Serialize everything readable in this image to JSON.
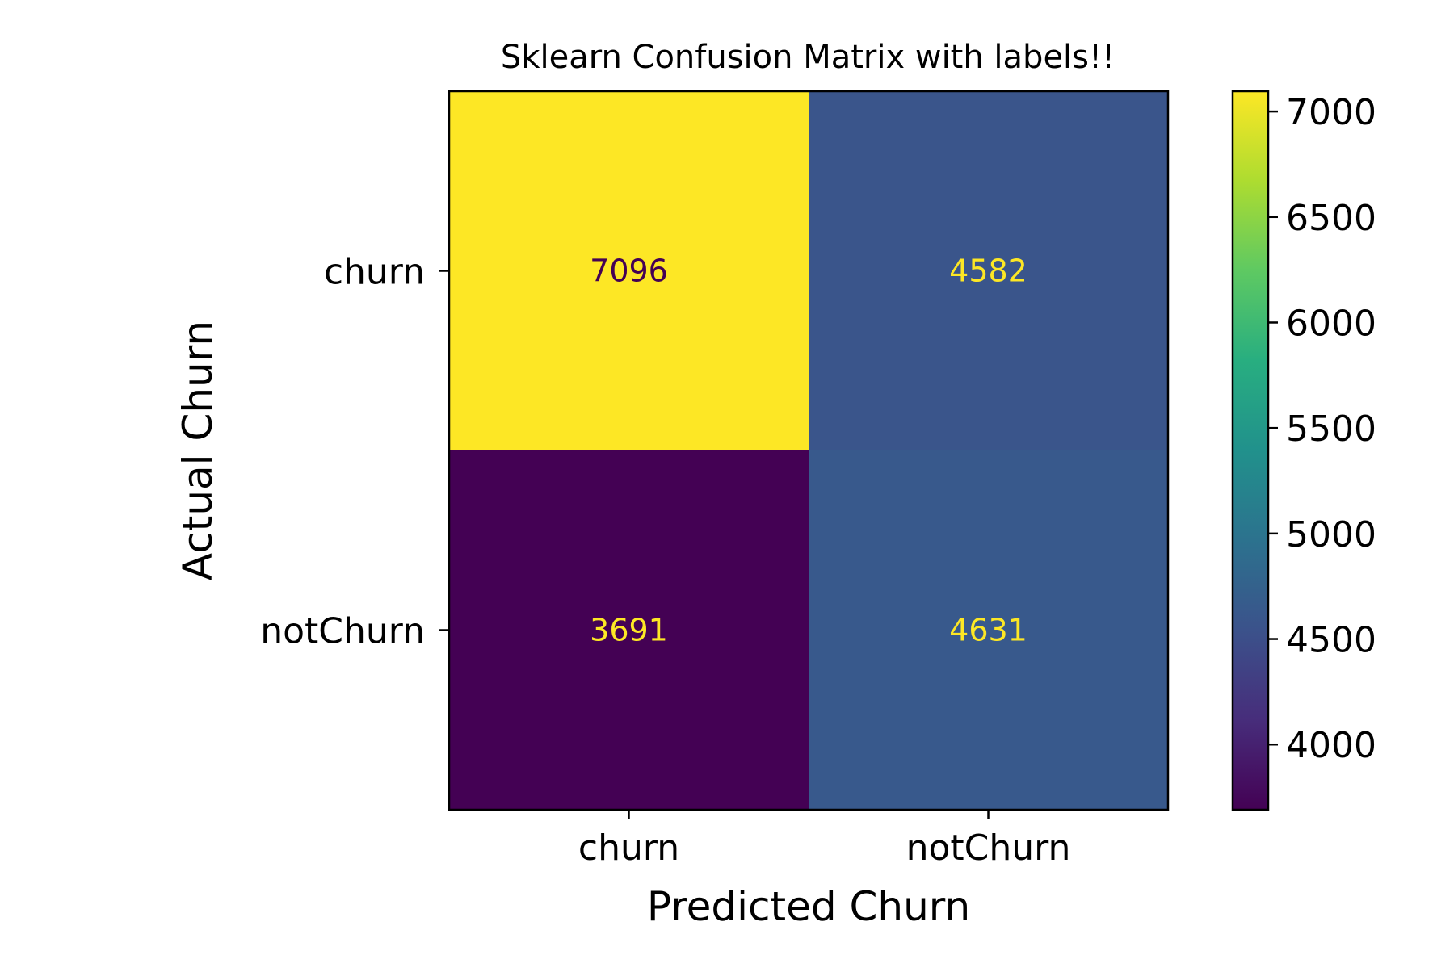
{
  "chart_data": {
    "type": "heatmap",
    "title": "Sklearn Confusion Matrix with labels!!",
    "xlabel": "Predicted Churn",
    "ylabel": "Actual Churn",
    "x_categories": [
      "churn",
      "notChurn"
    ],
    "y_categories": [
      "churn",
      "notChurn"
    ],
    "values": [
      [
        7096,
        4582
      ],
      [
        3691,
        4631
      ]
    ],
    "colormap": "viridis",
    "color_range": [
      3691,
      7096
    ],
    "colorbar_ticks": [
      4000,
      4500,
      5000,
      5500,
      6000,
      6500,
      7000
    ],
    "grid": false
  }
}
